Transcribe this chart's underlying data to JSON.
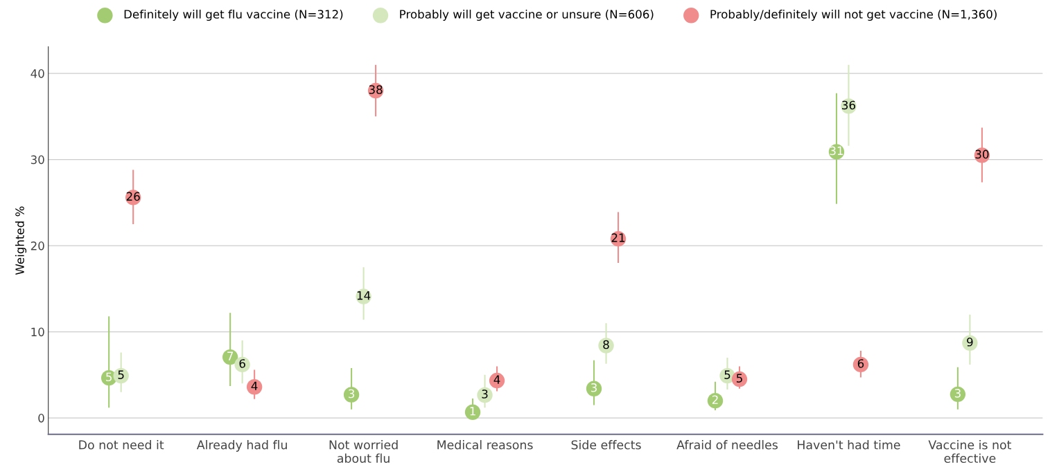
{
  "chart_data": {
    "type": "scatter",
    "ylabel": "Weighted %",
    "categories": [
      "Do not need it",
      "Already had flu",
      "Not worried\nabout flu",
      "Medical reasons",
      "Side effects",
      "Afraid of needles",
      "Haven't had time",
      "Vaccine is not\neffective"
    ],
    "series": [
      {
        "name": "Definitely will get flu vaccine (N=312)",
        "color": "#a3cc72",
        "values": [
          4.65,
          7.07,
          2.7,
          0.67,
          3.4,
          2.0,
          30.9,
          2.75
        ],
        "errors": [
          [
            1.2,
            11.8
          ],
          [
            3.7,
            12.2
          ],
          [
            1.0,
            5.8
          ],
          [
            0.1,
            2.25
          ],
          [
            1.5,
            6.7
          ],
          [
            0.9,
            4.2
          ],
          [
            24.85,
            37.7
          ],
          [
            1.0,
            5.9
          ]
        ],
        "value_labels": [
          "5",
          "7",
          "3",
          "1",
          "3",
          "2",
          "31",
          "3"
        ]
      },
      {
        "name": "Probably will get vaccine or unsure (N=606)",
        "color": "#d5e8bd",
        "values": [
          4.9,
          6.2,
          14.1,
          2.66,
          8.4,
          4.9,
          36.2,
          8.7
        ],
        "errors": [
          [
            3.0,
            7.6
          ],
          [
            4.0,
            9.0
          ],
          [
            11.4,
            17.5
          ],
          [
            1.2,
            5.0
          ],
          [
            6.3,
            11.0
          ],
          [
            3.3,
            7.0
          ],
          [
            31.6,
            41.0
          ],
          [
            6.2,
            12.0
          ]
        ],
        "value_labels": [
          "5",
          "6",
          "14",
          "3",
          "8",
          "5",
          "36",
          "9"
        ]
      },
      {
        "name": "Probably/definitely will not get vaccine (N=1,360)",
        "color": "#f08c8c",
        "values": [
          25.6,
          3.6,
          38.0,
          4.34,
          20.8,
          4.5,
          6.2,
          30.5
        ],
        "errors": [
          [
            22.5,
            28.8
          ],
          [
            2.2,
            5.6
          ],
          [
            35.0,
            41.0
          ],
          [
            3.1,
            6.0
          ],
          [
            18.0,
            23.9
          ],
          [
            3.4,
            6.0
          ],
          [
            4.7,
            7.8
          ],
          [
            27.35,
            33.7
          ]
        ],
        "value_labels": [
          "26",
          "4",
          "38",
          "4",
          "21",
          "5",
          "6",
          "30"
        ]
      }
    ],
    "ylim": [
      -1.9,
      43.1
    ],
    "yticks": [
      0,
      10,
      20,
      30,
      40
    ],
    "grid": "y",
    "legend": "top",
    "marker": "circle"
  }
}
